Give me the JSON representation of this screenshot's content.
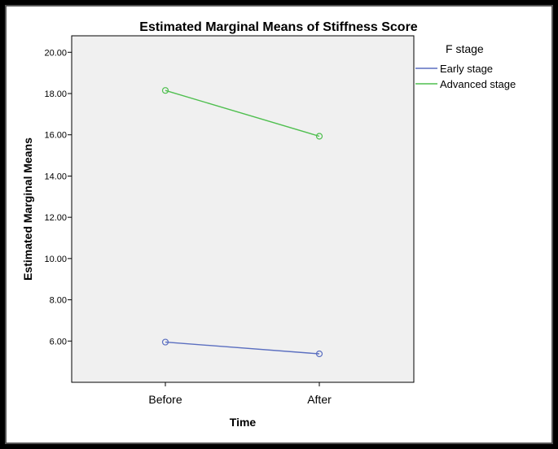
{
  "chart_data": {
    "type": "line",
    "title": "Estimated Marginal Means of Stiffness Score",
    "xlabel": "Time",
    "ylabel": "Estimated Marginal Means",
    "categories": [
      "Before",
      "After"
    ],
    "ylim": [
      4.0,
      20.8
    ],
    "yticks": [
      6,
      8,
      10,
      12,
      14,
      16,
      18,
      20
    ],
    "ytick_labels": [
      "6.00",
      "8.00",
      "10.00",
      "12.00",
      "14.00",
      "16.00",
      "18.00",
      "20.00"
    ],
    "grid": false,
    "legend": {
      "title": "F stage",
      "placement": "right"
    },
    "series": [
      {
        "name": "Early stage",
        "values": [
          5.95,
          5.38
        ],
        "color": "#5b6fc0"
      },
      {
        "name": "Advanced stage",
        "values": [
          18.15,
          15.93
        ],
        "color": "#4fbf4f"
      }
    ]
  },
  "colors": {
    "plot_background": "#f0f0f0",
    "frame": "#000000"
  }
}
